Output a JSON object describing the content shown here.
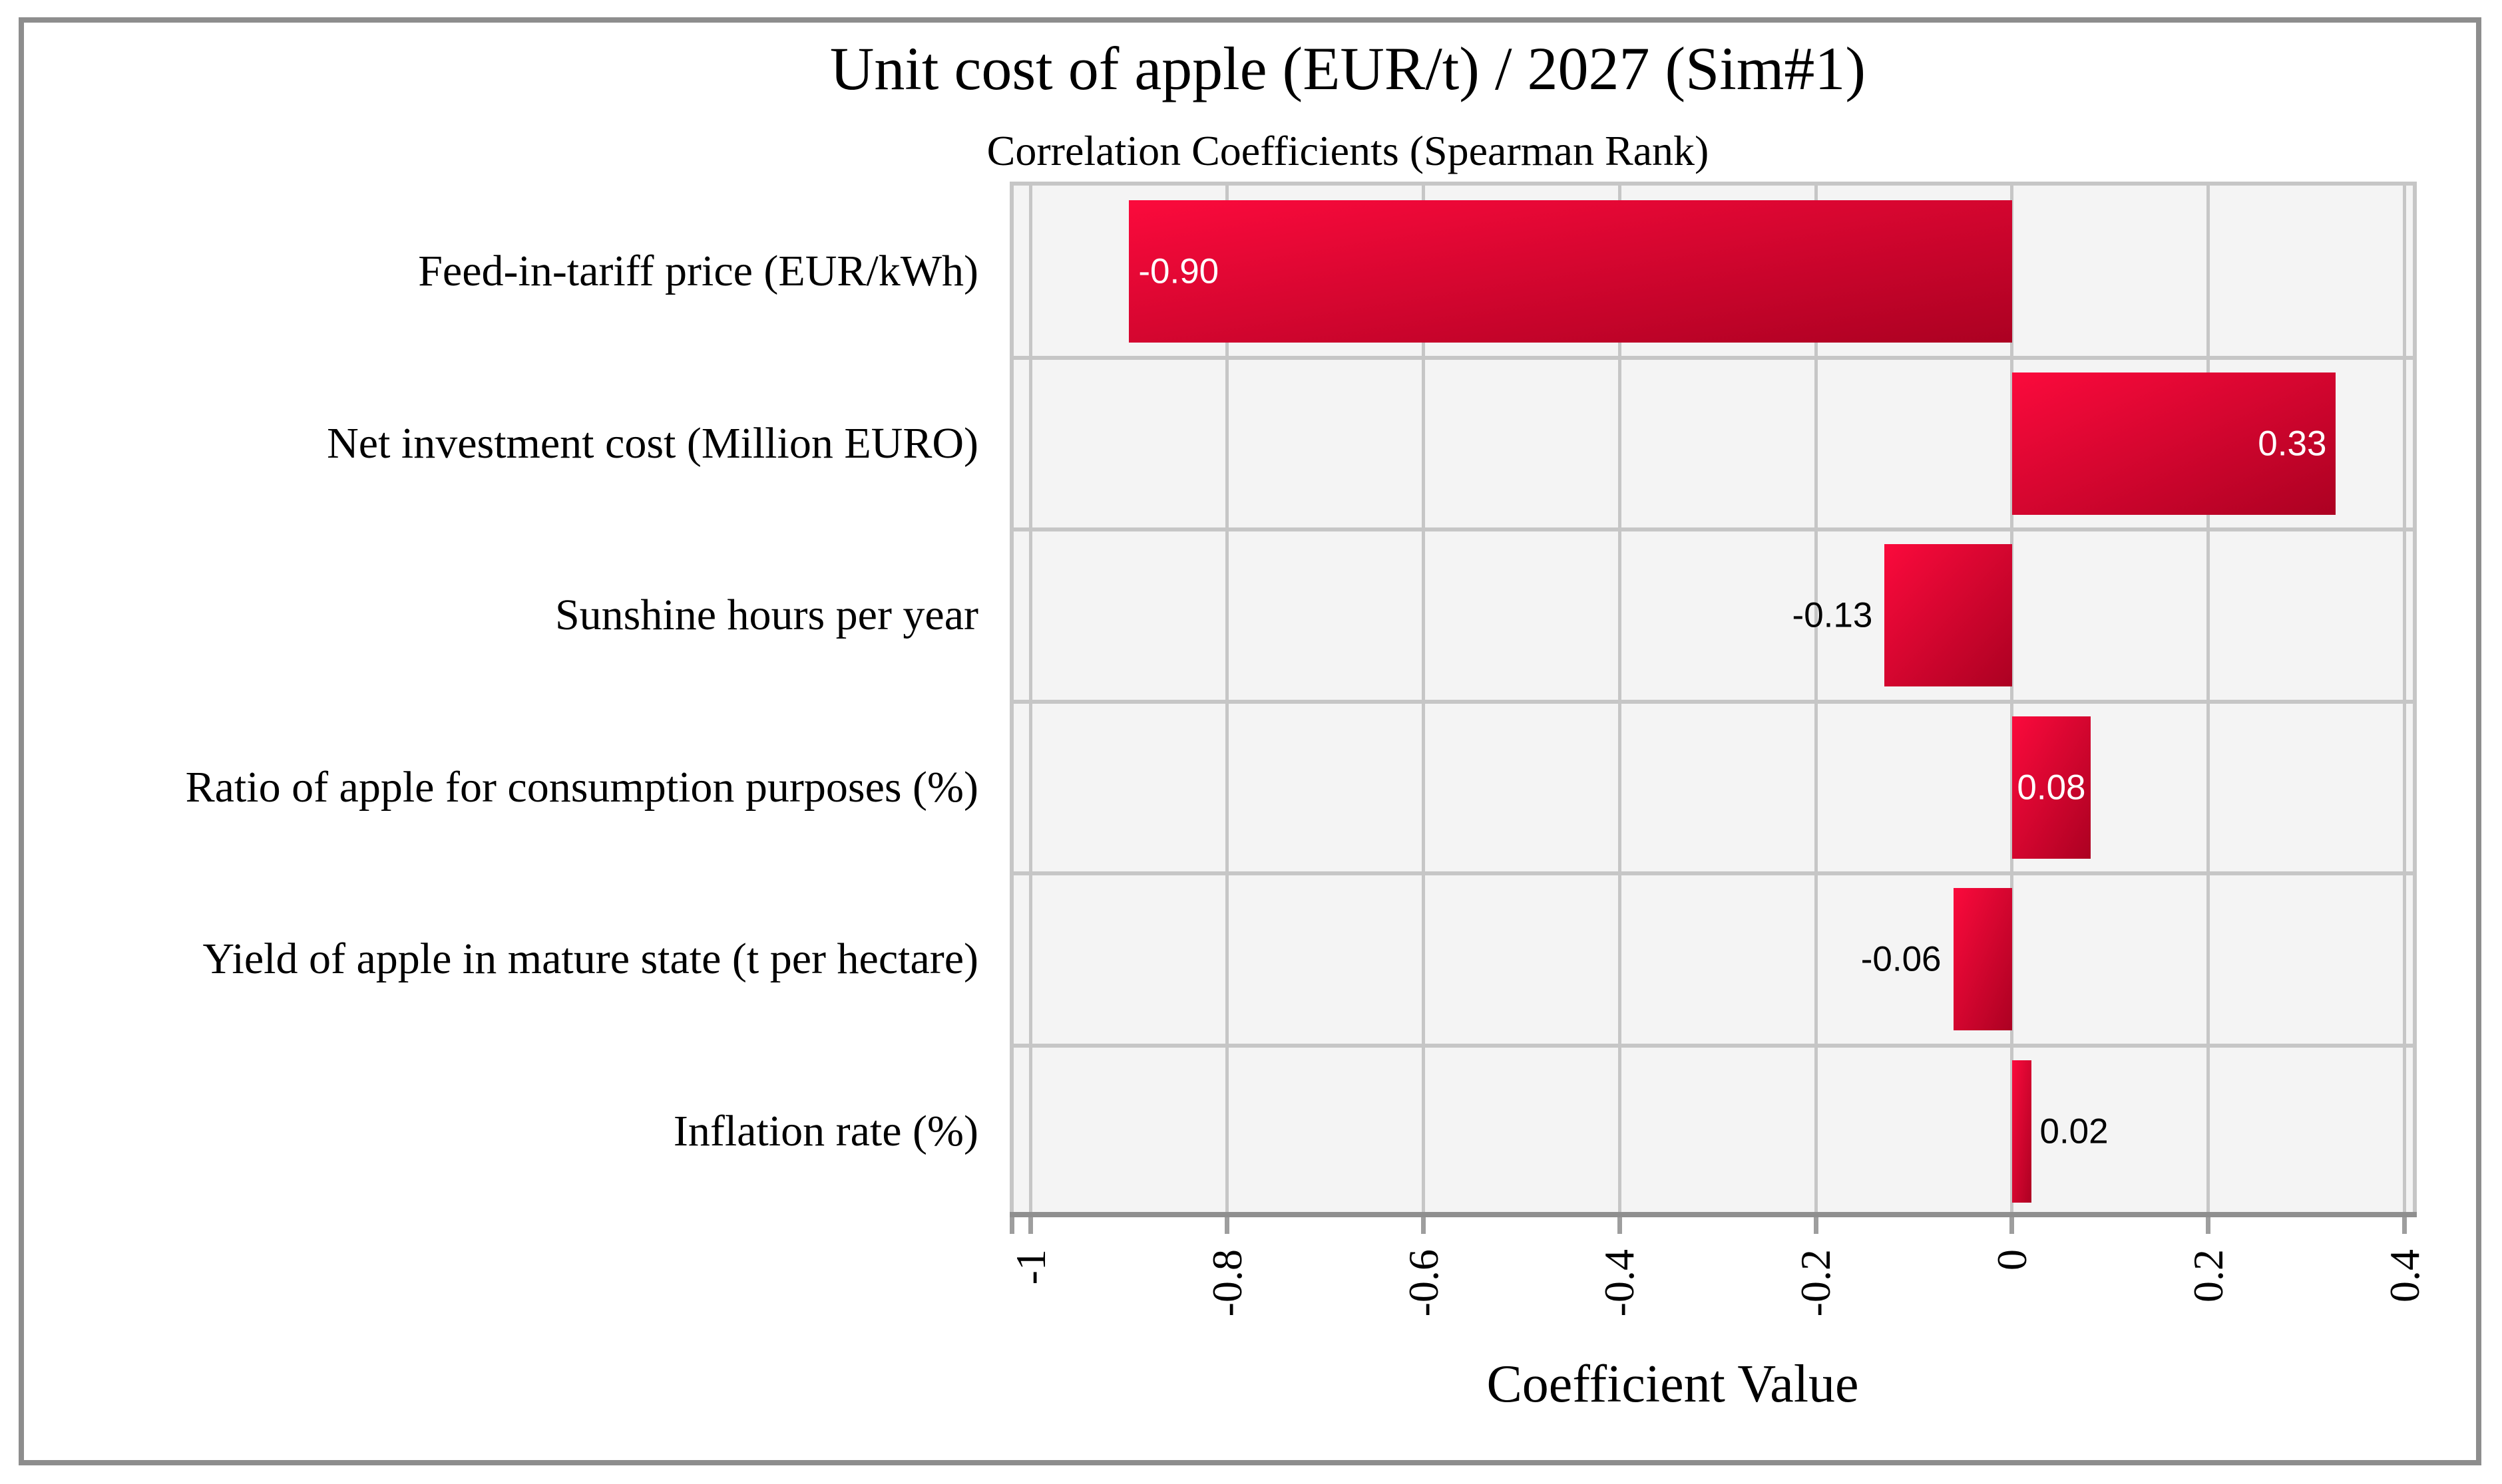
{
  "chart_data": {
    "type": "bar",
    "orientation": "horizontal",
    "title": "Unit cost of apple (EUR/t) / 2027 (Sim#1)",
    "subtitle": "Correlation Coefficients (Spearman Rank)",
    "xlabel": "Coefficient Value",
    "categories": [
      "Feed-in-tariff price (EUR/kWh)",
      "Net investment cost (Million EURO)",
      "Sunshine hours per year",
      "Ratio of apple for consumption purposes (%)",
      "Yield of apple in mature state (t per hectare)",
      "Inflation rate (%)"
    ],
    "values": [
      -0.9,
      0.33,
      -0.13,
      0.08,
      -0.06,
      0.02
    ],
    "value_labels": [
      "-0.90",
      "0.33",
      "-0.13",
      "0.08",
      "-0.06",
      "0.02"
    ],
    "label_styles": [
      {
        "placement": "inside-left",
        "color": "#ffffff"
      },
      {
        "placement": "inside-right",
        "color": "#ffffff"
      },
      {
        "placement": "outside-left",
        "color": "#000000"
      },
      {
        "placement": "inside-center",
        "color": "#ffffff"
      },
      {
        "placement": "outside-left",
        "color": "#000000"
      },
      {
        "placement": "outside-right",
        "color": "#000000"
      }
    ],
    "xticks": [
      -1,
      -0.8,
      -0.6,
      -0.4,
      -0.2,
      0,
      0.2,
      0.4
    ],
    "xtick_labels": [
      "-1",
      "-0.8",
      "-0.6",
      "-0.4",
      "-0.2",
      "0",
      "0.2",
      "0.4"
    ],
    "xlim": [
      -1.0176,
      0.4084
    ],
    "grid": true,
    "legend_position": "none",
    "colors": {
      "bar_gradient_start": "#fb0a3c",
      "bar_gradient_end": "#ac0122",
      "plot_background": "#f4f4f4",
      "gridline": "#c6c6c6",
      "axis_line": "#8f8f8f",
      "tick_mark": "#9e9e9e",
      "frame_border": "#8d8d8d",
      "label_inside": "#ffffff",
      "label_outside": "#000000"
    }
  }
}
